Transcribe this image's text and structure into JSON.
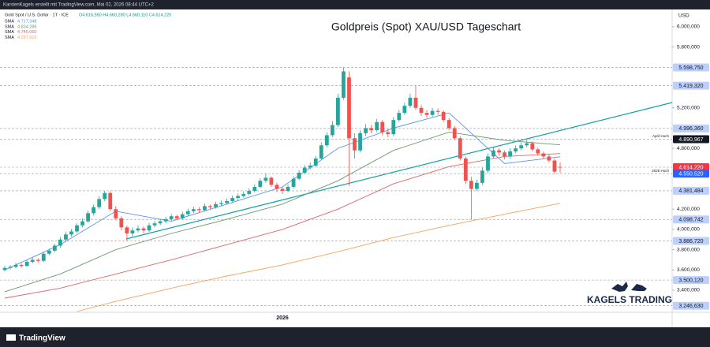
{
  "header": {
    "author": "KarstenKagels erstellt mit TradingView.com, Mai 02, 2026 08:44 UTC+2",
    "brand": "TradingView"
  },
  "chart_data": {
    "type": "candlestick",
    "title": "Goldpreis (Spot) XAU/USD Tageschart",
    "symbol": "Gold Spot / U.S. Dollar · 1T · ICE",
    "ohlc_legend": "O4.616,550 H4.660,280 L4.560,110 C4.614,220",
    "currency": "USD",
    "watermark": "KAGELS TRADING",
    "up_color": "#26a69a",
    "down_color": "#ef5350",
    "ylim": [
      3073,
      6171
    ],
    "yticks": [
      {
        "value": 6000,
        "label": "6.000,000"
      },
      {
        "value": 5800,
        "label": "5.800,000"
      },
      {
        "value": 5200,
        "label": "5.200,000"
      },
      {
        "value": 4800,
        "label": "4.800,000"
      },
      {
        "value": 4200,
        "label": "4.200,000"
      },
      {
        "value": 4000,
        "label": "4.000,000"
      },
      {
        "value": 3800,
        "label": "3.800,000"
      },
      {
        "value": 3600,
        "label": "3.600,000"
      },
      {
        "value": 3400,
        "label": "3.400,000"
      }
    ],
    "grid": false,
    "categories": [
      null,
      null,
      null,
      null,
      null,
      null,
      null,
      null,
      null,
      null,
      null,
      null,
      null,
      null,
      null,
      null,
      null,
      null,
      null,
      null,
      null,
      null,
      null,
      null,
      null,
      null,
      null,
      null,
      null,
      null,
      null,
      null,
      null,
      null,
      null,
      null,
      null,
      null,
      null,
      null,
      null,
      null,
      null,
      null,
      null,
      null,
      null,
      null,
      null,
      null,
      "2026",
      null,
      null,
      null,
      null,
      null,
      null,
      null,
      null,
      null,
      null,
      null,
      null,
      null,
      null,
      null,
      null,
      null,
      null,
      null,
      null,
      null,
      null,
      null,
      null,
      null,
      null,
      null,
      null,
      null,
      null,
      null,
      null,
      null,
      null,
      null,
      null,
      null,
      null,
      null,
      null,
      null,
      null,
      null,
      null,
      null,
      null,
      null,
      null,
      null,
      null
    ],
    "ohlc": [
      [
        3600,
        3640,
        3585,
        3620
      ],
      [
        3620,
        3650,
        3605,
        3630
      ],
      [
        3630,
        3670,
        3615,
        3650
      ],
      [
        3650,
        3665,
        3620,
        3640
      ],
      [
        3640,
        3700,
        3630,
        3680
      ],
      [
        3680,
        3720,
        3665,
        3700
      ],
      [
        3700,
        3715,
        3670,
        3690
      ],
      [
        3690,
        3775,
        3680,
        3760
      ],
      [
        3760,
        3810,
        3745,
        3790
      ],
      [
        3790,
        3860,
        3775,
        3840
      ],
      [
        3840,
        3925,
        3820,
        3900
      ],
      [
        3900,
        3975,
        3885,
        3950
      ],
      [
        3950,
        4005,
        3930,
        3980
      ],
      [
        3980,
        4060,
        3965,
        4040
      ],
      [
        4040,
        4110,
        4020,
        4080
      ],
      [
        4080,
        4185,
        4065,
        4160
      ],
      [
        4160,
        4245,
        4140,
        4220
      ],
      [
        4220,
        4330,
        4200,
        4300
      ],
      [
        4300,
        4381,
        4280,
        4360
      ],
      [
        4360,
        4375,
        4180,
        4200
      ],
      [
        4200,
        4230,
        4090,
        4110
      ],
      [
        4110,
        4130,
        3990,
        4020
      ],
      [
        4020,
        4040,
        3887,
        3960
      ],
      [
        3960,
        4020,
        3930,
        3990
      ],
      [
        3990,
        4040,
        3970,
        4010
      ],
      [
        4010,
        4030,
        3960,
        3990
      ],
      [
        3990,
        4065,
        3975,
        4040
      ],
      [
        4040,
        4085,
        4020,
        4060
      ],
      [
        4060,
        4105,
        4040,
        4080
      ],
      [
        4080,
        4125,
        4060,
        4100
      ],
      [
        4100,
        4155,
        4085,
        4130
      ],
      [
        4130,
        4145,
        4090,
        4110
      ],
      [
        4110,
        4175,
        4095,
        4150
      ],
      [
        4150,
        4205,
        4130,
        4180
      ],
      [
        4180,
        4225,
        4160,
        4200
      ],
      [
        4200,
        4220,
        4170,
        4190
      ],
      [
        4190,
        4255,
        4175,
        4230
      ],
      [
        4230,
        4245,
        4200,
        4220
      ],
      [
        4220,
        4275,
        4205,
        4250
      ],
      [
        4250,
        4285,
        4230,
        4260
      ],
      [
        4260,
        4305,
        4245,
        4280
      ],
      [
        4280,
        4335,
        4265,
        4310
      ],
      [
        4310,
        4355,
        4290,
        4330
      ],
      [
        4330,
        4375,
        4315,
        4350
      ],
      [
        4350,
        4405,
        4335,
        4380
      ],
      [
        4380,
        4445,
        4365,
        4420
      ],
      [
        4420,
        4505,
        4405,
        4480
      ],
      [
        4480,
        4550,
        4460,
        4510
      ],
      [
        4510,
        4525,
        4420,
        4440
      ],
      [
        4440,
        4460,
        4370,
        4400
      ],
      [
        4400,
        4420,
        4350,
        4380
      ],
      [
        4380,
        4445,
        4365,
        4420
      ],
      [
        4420,
        4525,
        4405,
        4500
      ],
      [
        4500,
        4585,
        4485,
        4560
      ],
      [
        4560,
        4635,
        4545,
        4610
      ],
      [
        4610,
        4660,
        4590,
        4630
      ],
      [
        4630,
        4725,
        4615,
        4700
      ],
      [
        4700,
        4860,
        4690,
        4830
      ],
      [
        4830,
        4960,
        4810,
        4930
      ],
      [
        4930,
        5070,
        4910,
        5030
      ],
      [
        5030,
        5340,
        5010,
        5300
      ],
      [
        5300,
        5598.75,
        5280,
        5560
      ],
      [
        5500,
        5560,
        4430,
        4900
      ],
      [
        4900,
        4950,
        4700,
        4780
      ],
      [
        4780,
        4980,
        4760,
        4950
      ],
      [
        4950,
        5040,
        4920,
        5000
      ],
      [
        5000,
        5030,
        4950,
        4980
      ],
      [
        4980,
        5090,
        4960,
        5060
      ],
      [
        5060,
        5080,
        4930,
        4960
      ],
      [
        4960,
        4990,
        4910,
        4940
      ],
      [
        4940,
        5110,
        4920,
        5080
      ],
      [
        5080,
        5180,
        5060,
        5150
      ],
      [
        5150,
        5250,
        5130,
        5220
      ],
      [
        5220,
        5340,
        5200,
        5300
      ],
      [
        5300,
        5419.32,
        5180,
        5200
      ],
      [
        5200,
        5230,
        5120,
        5150
      ],
      [
        5150,
        5180,
        5100,
        5130
      ],
      [
        5130,
        5200,
        5110,
        5170
      ],
      [
        5170,
        5195,
        5130,
        5160
      ],
      [
        5160,
        5175,
        5060,
        5080
      ],
      [
        5080,
        5100,
        4980,
        5000
      ],
      [
        5000,
        5020,
        4880,
        4900
      ],
      [
        4900,
        4920,
        4680,
        4700
      ],
      [
        4700,
        4720,
        4450,
        4480
      ],
      [
        4480,
        4520,
        4098.74,
        4400
      ],
      [
        4400,
        4490,
        4380,
        4460
      ],
      [
        4460,
        4610,
        4440,
        4580
      ],
      [
        4580,
        4750,
        4560,
        4720
      ],
      [
        4720,
        4810,
        4700,
        4780
      ],
      [
        4780,
        4800,
        4730,
        4760
      ],
      [
        4760,
        4780,
        4690,
        4720
      ],
      [
        4720,
        4800,
        4700,
        4770
      ],
      [
        4770,
        4830,
        4750,
        4800
      ],
      [
        4800,
        4860,
        4780,
        4830
      ],
      [
        4830,
        4890.97,
        4810,
        4850
      ],
      [
        4850,
        4870,
        4770,
        4790
      ],
      [
        4790,
        4810,
        4730,
        4750
      ],
      [
        4750,
        4770,
        4700,
        4720
      ],
      [
        4720,
        4740,
        4660,
        4680
      ],
      [
        4680,
        4700,
        4550,
        4570
      ],
      [
        4616.55,
        4660.28,
        4560.11,
        4614.22
      ]
    ],
    "series": [
      {
        "name": "SMA",
        "last_label": "4.717,348",
        "color": "#5b8ff9",
        "x": [
          0,
          10,
          20,
          30,
          40,
          50,
          60,
          70,
          80,
          90,
          100
        ],
        "values": [
          3600,
          3850,
          4180,
          4080,
          4250,
          4420,
          4800,
          5000,
          5150,
          4650,
          4717.348
        ]
      },
      {
        "name": "SMA",
        "last_label": "4.834,286",
        "color": "#6a9a6c",
        "x": [
          0,
          10,
          20,
          30,
          40,
          50,
          60,
          70,
          80,
          90,
          100
        ],
        "values": [
          3385,
          3560,
          3800,
          3960,
          4100,
          4250,
          4480,
          4780,
          4960,
          4880,
          4834.286
        ]
      },
      {
        "name": "SMA",
        "last_label": "4.749,060",
        "color": "#e06666",
        "x": [
          0,
          10,
          20,
          30,
          40,
          50,
          60,
          70,
          80,
          90,
          100
        ],
        "values": [
          3322,
          3420,
          3560,
          3700,
          3850,
          4000,
          4200,
          4450,
          4620,
          4720,
          4749.06
        ]
      },
      {
        "name": "SMA",
        "last_label": "4.257,916",
        "color": "#f5a25d",
        "x": [
          13,
          20,
          30,
          40,
          50,
          60,
          70,
          80,
          90,
          100
        ],
        "values": [
          3190,
          3290,
          3420,
          3540,
          3650,
          3780,
          3920,
          4040,
          4150,
          4257.916
        ]
      }
    ],
    "levels": [
      {
        "value": 5598.75,
        "label": "5.598,750",
        "color": "#bcd0fb"
      },
      {
        "value": 5419.32,
        "label": "5.419,320",
        "color": "#bcd0fb"
      },
      {
        "value": 4996.36,
        "label": "4.996,360",
        "color": "#bcd0fb"
      },
      {
        "value": 4890.967,
        "label": "4.890,967",
        "color": "#131722",
        "note": "April-Hoch"
      },
      {
        "value": 4614.22,
        "label": "4.614,220",
        "color": "#f23645"
      },
      {
        "value": 4550.52,
        "label": "4.550,520",
        "color": "#2962ff",
        "note": "2025 Hoch"
      },
      {
        "value": 4381.484,
        "label": "4.381,484",
        "color": "#bcd0fb"
      },
      {
        "value": 4098.742,
        "label": "4.098,742",
        "color": "#bcd0fb"
      },
      {
        "value": 3886.72,
        "label": "3.886,720",
        "color": "#bcd0fb"
      },
      {
        "value": 3500.12,
        "label": "3.500,120",
        "color": "#bcd0fb"
      },
      {
        "value": 3246.63,
        "label": "3.246,630",
        "color": "#bcd0fb"
      }
    ]
  }
}
